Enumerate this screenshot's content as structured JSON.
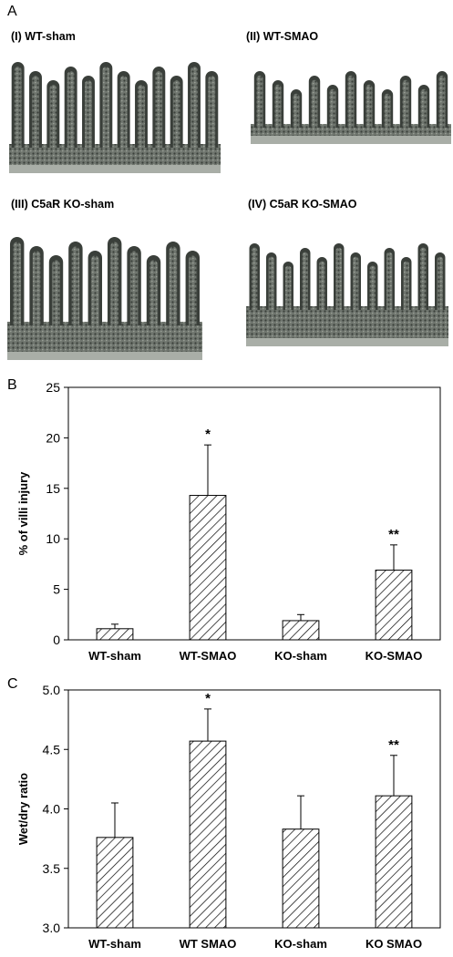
{
  "panel_letters": {
    "a": "A",
    "b": "B",
    "c": "C"
  },
  "micrographs": [
    {
      "label": "(I) WT-sham"
    },
    {
      "label": "(II) WT-SMAO"
    },
    {
      "label": "(III) C5aR KO-sham"
    },
    {
      "label": "(IV) C5aR KO-SMAO"
    }
  ],
  "colors": {
    "tissue_dark": "#3a3f3a",
    "tissue_mid": "#6f756e",
    "muscle": "#a9aea7",
    "bar_hatch": "#000000"
  },
  "chart_data": [
    {
      "type": "bar",
      "categories": [
        "WT-sham",
        "WT-SMAO",
        "KO-sham",
        "KO-SMAO"
      ],
      "values": [
        1.1,
        14.3,
        1.9,
        6.9
      ],
      "errors": [
        0.45,
        5.0,
        0.6,
        2.5
      ],
      "annotations": [
        "",
        "*",
        "",
        "**"
      ],
      "title": "",
      "xlabel": "",
      "ylabel": "% of villi injury",
      "ylim": [
        0,
        25
      ],
      "yticks": [
        "0",
        "5",
        "10",
        "15",
        "20",
        "25"
      ],
      "grid": false,
      "fill": "diagonal hatch"
    },
    {
      "type": "bar",
      "categories": [
        "WT-sham",
        "WT SMAO",
        "KO-sham",
        "KO SMAO"
      ],
      "values": [
        3.76,
        4.57,
        3.83,
        4.11
      ],
      "errors": [
        0.29,
        0.27,
        0.28,
        0.34
      ],
      "annotations": [
        "",
        "*",
        "",
        "**"
      ],
      "title": "",
      "xlabel": "",
      "ylabel": "Wet/dry ratio",
      "ylim": [
        3.0,
        5.0
      ],
      "yticks": [
        "3.0",
        "3.5",
        "4.0",
        "4.5",
        "5.0"
      ],
      "grid": false,
      "fill": "diagonal hatch"
    }
  ]
}
